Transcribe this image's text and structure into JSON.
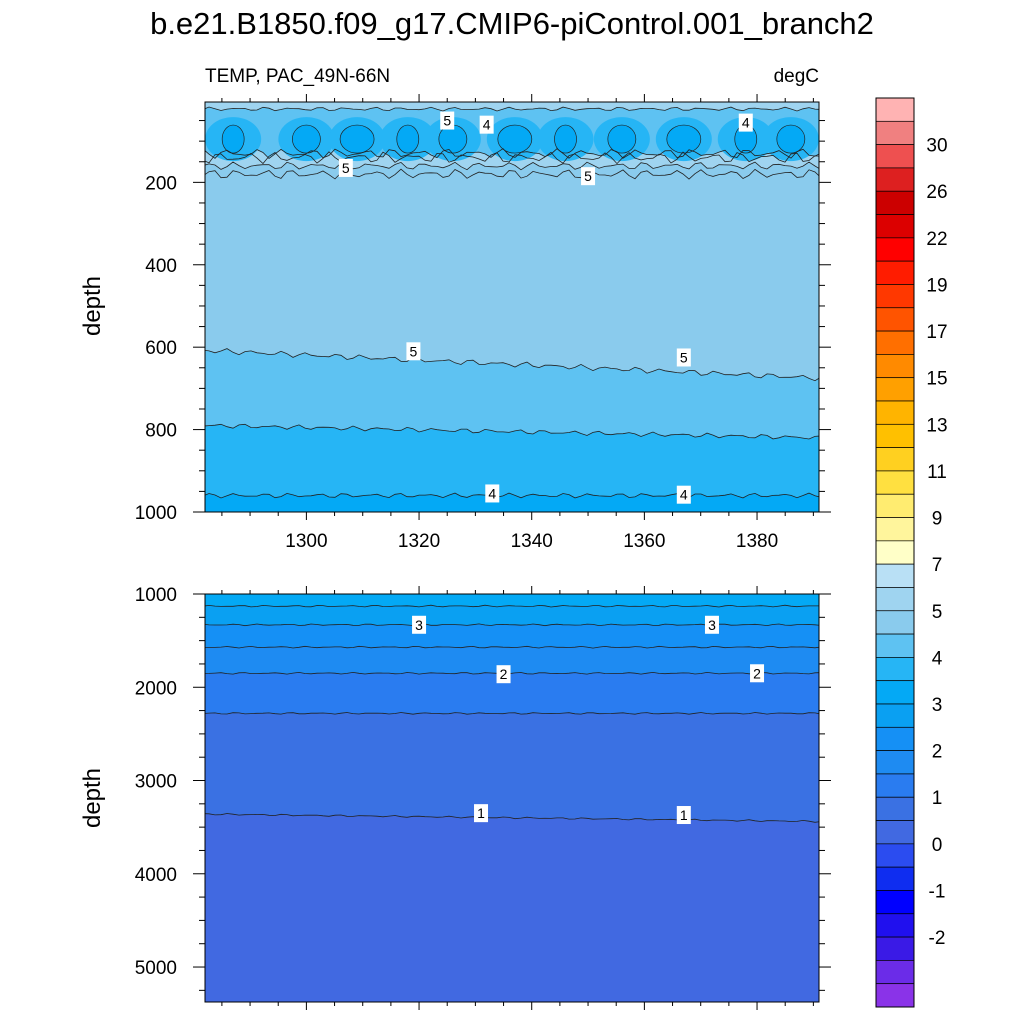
{
  "title": "b.e21.B1850.f09_g17.CMIP6-piControl.001_branch2",
  "subtitle_left": "TEMP, PAC_49N-66N",
  "subtitle_right": "degC",
  "chart_data": [
    {
      "type": "heatmap",
      "panel": "upper",
      "variable": "TEMP",
      "region": "PAC_49N-66N",
      "units": "degC",
      "xlabel": "",
      "ylabel": "depth",
      "x_ticks": [
        1300,
        1320,
        1340,
        1360,
        1380
      ],
      "xlim": [
        1282,
        1391
      ],
      "y_ticks": [
        200,
        400,
        600,
        800,
        1000
      ],
      "ylim": [
        1000,
        5
      ],
      "y_reversed": true,
      "bands": [
        {
          "level": 4.5,
          "from_depth": 5,
          "to_depth": 1000,
          "color": "#5ec2f2"
        },
        {
          "level": 4.0,
          "from_depth": 5,
          "to_depth": 1000,
          "color": "#26b5f5"
        },
        {
          "level": 3.5,
          "from_depth": 5,
          "to_depth": 1000,
          "color": "#04a9f5"
        },
        {
          "level": 5.0,
          "from_depth": 5,
          "to_depth": 1000,
          "color": "#8acbed"
        },
        {
          "level": 5.5,
          "from_depth": 5,
          "to_depth": 1000,
          "color": "#9fd4f0"
        }
      ],
      "contour_labels": [
        {
          "text": "5",
          "x": 1325,
          "depth": 50
        },
        {
          "text": "4",
          "x": 1332,
          "depth": 60
        },
        {
          "text": "4",
          "x": 1378,
          "depth": 55
        },
        {
          "text": "5",
          "x": 1307,
          "depth": 165
        },
        {
          "text": "5",
          "x": 1350,
          "depth": 185
        },
        {
          "text": "5",
          "x": 1319,
          "depth": 610
        },
        {
          "text": "5",
          "x": 1367,
          "depth": 625
        },
        {
          "text": "4",
          "x": 1333,
          "depth": 955
        },
        {
          "text": "4",
          "x": 1367,
          "depth": 958
        }
      ]
    },
    {
      "type": "heatmap",
      "panel": "lower",
      "variable": "TEMP",
      "units": "degC",
      "xlabel": "",
      "ylabel": "depth",
      "xlim": [
        1282,
        1391
      ],
      "y_ticks": [
        1000,
        2000,
        3000,
        4000,
        5000
      ],
      "ylim": [
        5375,
        1000
      ],
      "y_reversed": true,
      "contour_depths": [
        1130,
        1330,
        1570,
        1850,
        2280,
        3360
      ],
      "band_colors": [
        "#04a9f5",
        "#0aa0f2",
        "#1590f5",
        "#1e8bf2",
        "#2a7cf0",
        "#3a71e3",
        "#4169e1"
      ],
      "contour_labels": [
        {
          "text": "3",
          "x": 1320,
          "depth": 1330
        },
        {
          "text": "3",
          "x": 1372,
          "depth": 1330
        },
        {
          "text": "2",
          "x": 1335,
          "depth": 1860
        },
        {
          "text": "2",
          "x": 1380,
          "depth": 1850
        },
        {
          "text": "1",
          "x": 1331,
          "depth": 3350
        },
        {
          "text": "1",
          "x": 1367,
          "depth": 3370
        }
      ]
    },
    {
      "type": "colorbar",
      "labels": [
        "30",
        "26",
        "22",
        "19",
        "17",
        "15",
        "13",
        "11",
        "9",
        "7",
        "5",
        "4",
        "3",
        "2",
        "1",
        "0",
        "-1",
        "-2"
      ],
      "colors": [
        "#ffb3b3",
        "#f08080",
        "#ee5050",
        "#dd2020",
        "#cc0000",
        "#dc0000",
        "#ff0000",
        "#ff1c00",
        "#ff3800",
        "#ff5400",
        "#ff6f00",
        "#ff8a00",
        "#ffa000",
        "#ffb400",
        "#ffc000",
        "#ffd020",
        "#ffe040",
        "#ffec70",
        "#fff59c",
        "#ffffc8",
        "#b9e0f5",
        "#9fd4f0",
        "#8acbed",
        "#5ec2f2",
        "#26b5f5",
        "#04a9f5",
        "#0aa0f2",
        "#1590f5",
        "#1e8bf2",
        "#2a7cf0",
        "#3a71e3",
        "#4169e1",
        "#2b4cf0",
        "#0f2df0",
        "#0000ff",
        "#2010ee",
        "#3a1ae6",
        "#6b2ce8",
        "#8a33e8"
      ]
    }
  ]
}
